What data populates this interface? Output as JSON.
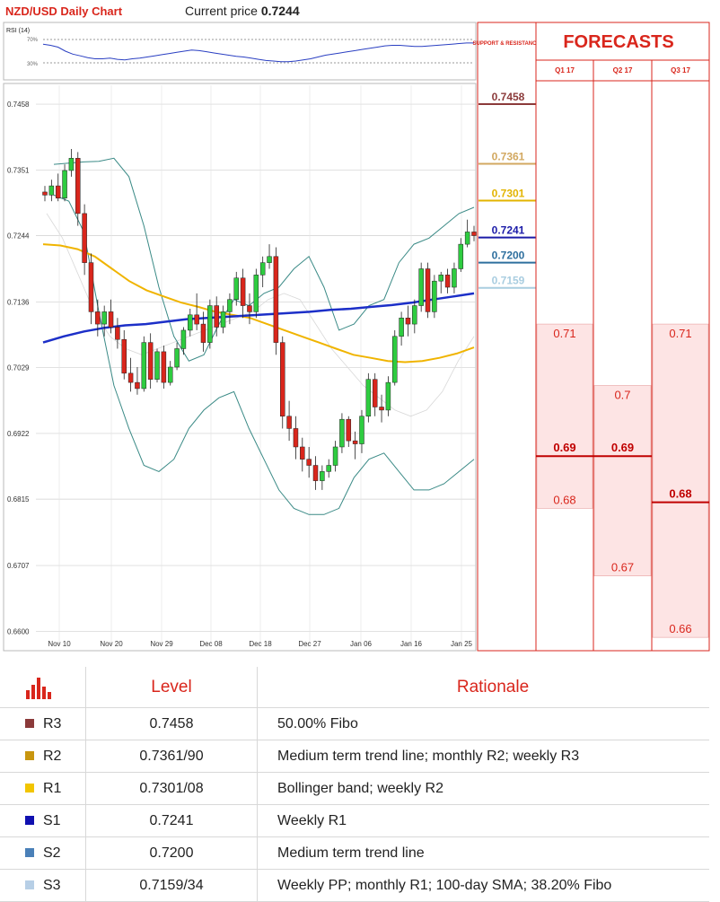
{
  "header": {
    "title": "NZD/USD Daily Chart",
    "price_label": "Current price",
    "price_value": "0.7244"
  },
  "rsi": {
    "label": "RSI (14)",
    "upper": "70%",
    "lower": "30%",
    "values": [
      62,
      60,
      57,
      50,
      45,
      42,
      39,
      37,
      37,
      38,
      36,
      35,
      37,
      38,
      40,
      42,
      44,
      46,
      48,
      50,
      52,
      51,
      49,
      47,
      45,
      43,
      41,
      40,
      38,
      36,
      34,
      33,
      32,
      32,
      33,
      35,
      37,
      40,
      43,
      45,
      47,
      49,
      51,
      53,
      55,
      57,
      59,
      60,
      60,
      59,
      58,
      58,
      59,
      60,
      61,
      62,
      63,
      64,
      64
    ]
  },
  "chart_data": {
    "type": "candlestick",
    "title": "NZD/USD Daily Chart",
    "y_ticks": [
      "0.7458",
      "0.7351",
      "0.7244",
      "0.7136",
      "0.7029",
      "0.6922",
      "0.6815",
      "0.6707",
      "0.6600"
    ],
    "ylim": [
      0.658,
      0.748
    ],
    "x_ticks": [
      "Nov 10",
      "Nov 20",
      "Nov 29",
      "Dec 08",
      "Dec 18",
      "Dec 27",
      "Jan 06",
      "Jan 16",
      "Jan 25"
    ],
    "candles": [
      [
        0.7315,
        0.7325,
        0.73,
        0.731
      ],
      [
        0.731,
        0.7335,
        0.73,
        0.7325
      ],
      [
        0.7325,
        0.7345,
        0.73,
        0.7305
      ],
      [
        0.7305,
        0.736,
        0.73,
        0.735
      ],
      [
        0.735,
        0.7385,
        0.734,
        0.737
      ],
      [
        0.737,
        0.738,
        0.726,
        0.728
      ],
      [
        0.728,
        0.7295,
        0.718,
        0.72
      ],
      [
        0.72,
        0.7215,
        0.71,
        0.712
      ],
      [
        0.712,
        0.714,
        0.708,
        0.71
      ],
      [
        0.71,
        0.713,
        0.708,
        0.712
      ],
      [
        0.712,
        0.714,
        0.7085,
        0.7095
      ],
      [
        0.7095,
        0.711,
        0.706,
        0.7075
      ],
      [
        0.7075,
        0.709,
        0.701,
        0.702
      ],
      [
        0.702,
        0.7045,
        0.699,
        0.7005
      ],
      [
        0.7005,
        0.703,
        0.6985,
        0.6995
      ],
      [
        0.6995,
        0.708,
        0.699,
        0.707
      ],
      [
        0.707,
        0.7085,
        0.6995,
        0.701
      ],
      [
        0.701,
        0.706,
        0.7005,
        0.7055
      ],
      [
        0.7055,
        0.7065,
        0.6995,
        0.7005
      ],
      [
        0.7005,
        0.704,
        0.7,
        0.703
      ],
      [
        0.703,
        0.707,
        0.7025,
        0.706
      ],
      [
        0.706,
        0.7095,
        0.705,
        0.709
      ],
      [
        0.709,
        0.7125,
        0.708,
        0.7115
      ],
      [
        0.7115,
        0.715,
        0.709,
        0.71
      ],
      [
        0.71,
        0.712,
        0.7055,
        0.707
      ],
      [
        0.707,
        0.714,
        0.706,
        0.713
      ],
      [
        0.713,
        0.7145,
        0.708,
        0.7095
      ],
      [
        0.7095,
        0.713,
        0.7085,
        0.712
      ],
      [
        0.712,
        0.715,
        0.71,
        0.714
      ],
      [
        0.714,
        0.7185,
        0.713,
        0.7175
      ],
      [
        0.7175,
        0.719,
        0.711,
        0.713
      ],
      [
        0.713,
        0.715,
        0.71,
        0.712
      ],
      [
        0.712,
        0.719,
        0.711,
        0.718
      ],
      [
        0.718,
        0.721,
        0.716,
        0.72
      ],
      [
        0.72,
        0.723,
        0.719,
        0.721
      ],
      [
        0.721,
        0.7225,
        0.705,
        0.707
      ],
      [
        0.707,
        0.708,
        0.693,
        0.695
      ],
      [
        0.695,
        0.6975,
        0.691,
        0.693
      ],
      [
        0.693,
        0.695,
        0.688,
        0.69
      ],
      [
        0.69,
        0.6915,
        0.686,
        0.688
      ],
      [
        0.688,
        0.69,
        0.685,
        0.687
      ],
      [
        0.687,
        0.6885,
        0.683,
        0.6845
      ],
      [
        0.6845,
        0.687,
        0.683,
        0.686
      ],
      [
        0.686,
        0.688,
        0.685,
        0.687
      ],
      [
        0.687,
        0.691,
        0.686,
        0.69
      ],
      [
        0.69,
        0.6955,
        0.689,
        0.6945
      ],
      [
        0.6945,
        0.695,
        0.69,
        0.691
      ],
      [
        0.691,
        0.6925,
        0.688,
        0.6905
      ],
      [
        0.6905,
        0.696,
        0.689,
        0.695
      ],
      [
        0.695,
        0.702,
        0.694,
        0.701
      ],
      [
        0.701,
        0.702,
        0.695,
        0.6965
      ],
      [
        0.6965,
        0.6985,
        0.694,
        0.696
      ],
      [
        0.696,
        0.7015,
        0.695,
        0.7005
      ],
      [
        0.7005,
        0.709,
        0.7,
        0.708
      ],
      [
        0.708,
        0.712,
        0.7065,
        0.711
      ],
      [
        0.711,
        0.713,
        0.708,
        0.71
      ],
      [
        0.71,
        0.714,
        0.7085,
        0.713
      ],
      [
        0.713,
        0.72,
        0.712,
        0.719
      ],
      [
        0.719,
        0.72,
        0.711,
        0.712
      ],
      [
        0.712,
        0.718,
        0.711,
        0.717
      ],
      [
        0.717,
        0.7185,
        0.715,
        0.718
      ],
      [
        0.718,
        0.719,
        0.715,
        0.716
      ],
      [
        0.716,
        0.72,
        0.715,
        0.719
      ],
      [
        0.719,
        0.724,
        0.7185,
        0.723
      ],
      [
        0.723,
        0.727,
        0.7225,
        0.725
      ],
      [
        0.725,
        0.726,
        0.7235,
        0.7244
      ]
    ],
    "bollinger_upper": [
      0.736,
      0.7362,
      0.7364,
      0.7365,
      0.737,
      0.734,
      0.726,
      0.716,
      0.708,
      0.704,
      0.705,
      0.71,
      0.714,
      0.713,
      0.715,
      0.716,
      0.719,
      0.721,
      0.716,
      0.709,
      0.71,
      0.713,
      0.714,
      0.72,
      0.723,
      0.724,
      0.726,
      0.728,
      0.729
    ],
    "bollinger_lower": [
      0.731,
      0.73,
      0.725,
      0.712,
      0.7,
      0.693,
      0.687,
      0.686,
      0.688,
      0.693,
      0.696,
      0.698,
      0.699,
      0.693,
      0.688,
      0.683,
      0.68,
      0.679,
      0.679,
      0.68,
      0.685,
      0.688,
      0.689,
      0.686,
      0.683,
      0.683,
      0.684,
      0.686,
      0.688
    ],
    "sma_100": [
      0.723,
      0.7228,
      0.7222,
      0.721,
      0.719,
      0.717,
      0.7155,
      0.7145,
      0.7135,
      0.7128,
      0.712,
      0.7115,
      0.711,
      0.71,
      0.709,
      0.708,
      0.707,
      0.706,
      0.705,
      0.7045,
      0.704,
      0.7038,
      0.704,
      0.7045,
      0.7052,
      0.7062
    ],
    "sma_200": [
      0.707,
      0.708,
      0.7088,
      0.7094,
      0.7098,
      0.71,
      0.7104,
      0.7108,
      0.711,
      0.7112,
      0.7114,
      0.7116,
      0.7118,
      0.712,
      0.7123,
      0.7125,
      0.7128,
      0.7131,
      0.7135,
      0.714,
      0.7145,
      0.715
    ],
    "sma_thin": [
      0.728,
      0.724,
      0.718,
      0.712,
      0.708,
      0.706,
      0.705,
      0.706,
      0.707,
      0.708,
      0.709,
      0.71,
      0.711,
      0.712,
      0.714,
      0.715,
      0.714,
      0.71,
      0.706,
      0.703,
      0.7,
      0.698,
      0.696,
      0.695,
      0.696,
      0.699,
      0.704,
      0.708
    ]
  },
  "support_resistance": {
    "heading": "SUPPORT & RESISTANCE",
    "levels": [
      {
        "value": "0.7458",
        "y": 0.7458,
        "color": "#8b3a3a"
      },
      {
        "value": "0.7361",
        "y": 0.7361,
        "color": "#d2a860"
      },
      {
        "value": "0.7301",
        "y": 0.7301,
        "color": "#e3b400"
      },
      {
        "value": "0.7241",
        "y": 0.7241,
        "color": "#1b1ba8"
      },
      {
        "value": "0.7200",
        "y": 0.72,
        "color": "#2e6f9e"
      },
      {
        "value": "0.7159",
        "y": 0.7159,
        "color": "#a9cde0"
      }
    ]
  },
  "forecasts": {
    "title": "FORECASTS",
    "quarters": [
      {
        "label": "Q1 17",
        "high": "0.71",
        "median": "0.69",
        "low": "0.68",
        "high_y": 0.71,
        "median_y": 0.6885,
        "low_y": 0.68
      },
      {
        "label": "Q2 17",
        "high": "0.7",
        "median": "0.69",
        "low": "0.67",
        "high_y": 0.7,
        "median_y": 0.6885,
        "low_y": 0.669
      },
      {
        "label": "Q3 17",
        "high": "0.71",
        "median": "0.68",
        "low": "0.66",
        "high_y": 0.71,
        "median_y": 0.681,
        "low_y": 0.659
      }
    ]
  },
  "table": {
    "headers": {
      "level": "Level",
      "rationale": "Rationale"
    },
    "rows": [
      {
        "label": "R3",
        "level": "0.7458",
        "rationale": "50.00% Fibo",
        "color": "#8b3a3a"
      },
      {
        "label": "R2",
        "level": "0.7361/90",
        "rationale": "Medium term trend line; monthly R2; weekly R3",
        "color": "#c8960f"
      },
      {
        "label": "R1",
        "level": "0.7301/08",
        "rationale": "Bollinger band; weekly R2",
        "color": "#f2c500"
      },
      {
        "label": "S1",
        "level": "0.7241",
        "rationale": "Weekly R1",
        "color": "#1010b0"
      },
      {
        "label": "S2",
        "level": "0.7200",
        "rationale": "Medium term trend line",
        "color": "#4a80b8"
      },
      {
        "label": "S3",
        "level": "0.7159/34",
        "rationale": "Weekly PP; monthly R1; 100-day SMA; 38.20% Fibo",
        "color": "#b7cfe6"
      }
    ]
  }
}
